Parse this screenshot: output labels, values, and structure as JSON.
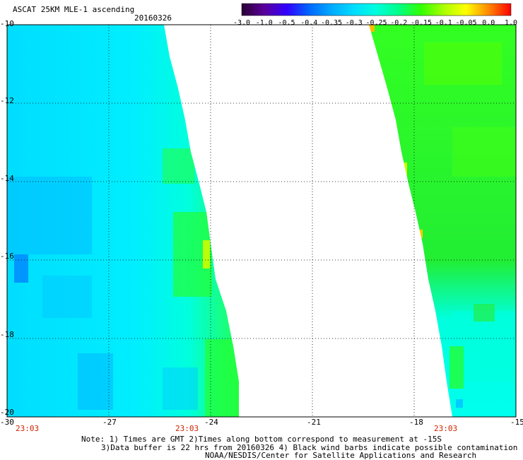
{
  "header": {
    "title": "ASCAT 25KM MLE-1 ascending",
    "date": "20160326"
  },
  "colorbar": {
    "labels": [
      "-3.0",
      "-1.0",
      "-0.5",
      "-0.4",
      "-0.35",
      "-0.3",
      "-0.25",
      "-0.2",
      "-0.15",
      "-0.1",
      "-0.05",
      "0.0",
      "1.0"
    ],
    "colors": [
      "#2a0033",
      "#5a0099",
      "#3300ff",
      "#0066ff",
      "#00aaff",
      "#00ddff",
      "#00ffdd",
      "#00ff88",
      "#33ff00",
      "#aaff00",
      "#ffff00",
      "#ff8800",
      "#ff0000"
    ]
  },
  "axes": {
    "lat_labels": [
      "-10",
      "-12",
      "-14",
      "-16",
      "-18",
      "-20"
    ],
    "lon_labels": [
      "-30",
      "-27",
      "-24",
      "-21",
      "-18",
      "-15"
    ],
    "lat_range": [
      -20,
      -10
    ],
    "lon_range": [
      -30,
      -15
    ]
  },
  "pass_times": [
    "23:03",
    "23:03",
    "23:03"
  ],
  "notes": {
    "line1": "Note: 1) Times are GMT 2)Times along bottom correspond to measurement at -15S",
    "line2": "3)Data buffer is 22 hrs from 20160326 4) Black wind barbs indicate possible contamination",
    "line3": "NOAA/NESDIS/Center for Satellite Applications and Research"
  },
  "swaths": {
    "left_color_primary": "#00ffff",
    "left_color_secondary": "#00d8ff",
    "left_edge_color": "#00ff55",
    "right_color_primary": "#11ee22",
    "right_color_secondary": "#22dd33",
    "right_lower_color": "#00ffee"
  }
}
